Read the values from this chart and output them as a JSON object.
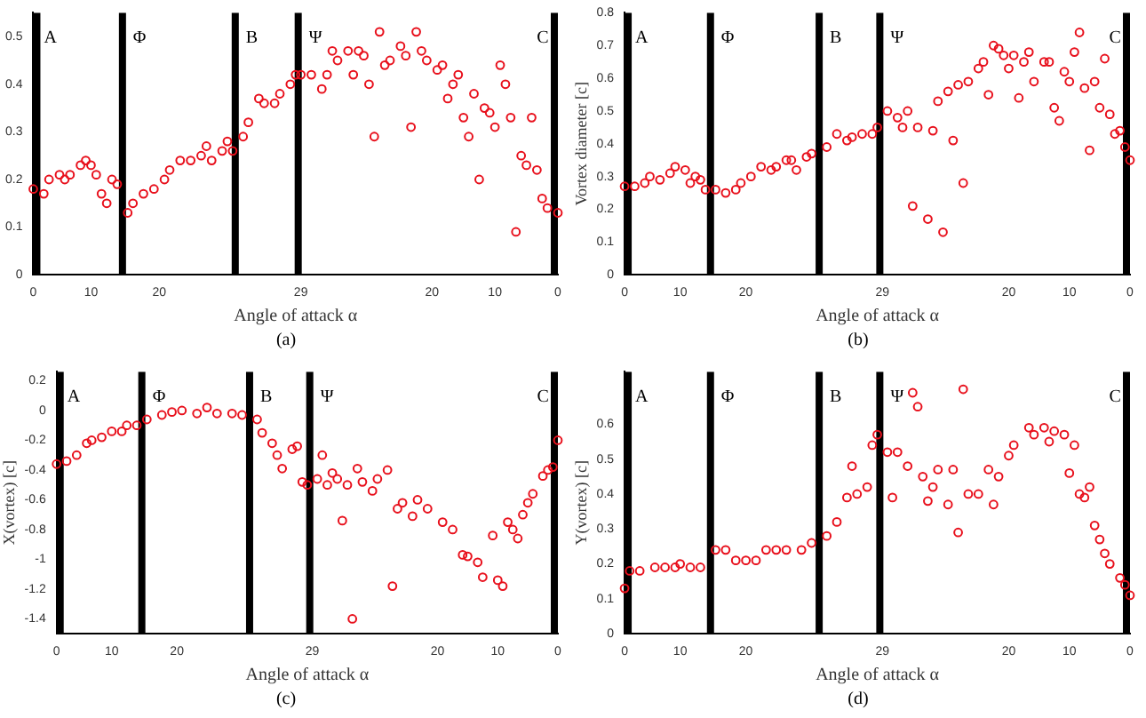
{
  "chart_data": [
    {
      "type": "scatter",
      "xlabel": "Angle of attack α",
      "marker": "circle",
      "grid": false,
      "legend": false,
      "categories": [
        "0",
        null,
        null,
        null,
        null,
        null,
        null,
        null,
        null,
        null,
        null,
        "10",
        null,
        null,
        null,
        null,
        null,
        null,
        null,
        null,
        null,
        null,
        null,
        null,
        "20",
        null,
        null,
        null,
        null,
        null,
        null,
        null,
        null,
        null,
        null,
        null,
        null,
        null,
        null,
        null,
        null,
        null,
        null,
        null,
        null,
        null,
        null,
        null,
        null,
        null,
        null,
        "29",
        null,
        null,
        null,
        null,
        null,
        null,
        null,
        null,
        null,
        null,
        null,
        null,
        null,
        null,
        null,
        null,
        null,
        null,
        null,
        null,
        null,
        null,
        null,
        null,
        "20",
        null,
        null,
        null,
        null,
        null,
        null,
        null,
        null,
        null,
        null,
        null,
        "10",
        null,
        null,
        null,
        null,
        null,
        null,
        null,
        null,
        null,
        null,
        null,
        "0"
      ],
      "ylim": [
        0,
        0.55
      ],
      "yticks": [
        0,
        0.1,
        0.2,
        0.3,
        0.4,
        0.5
      ],
      "annotations": [
        "A",
        "Φ",
        "B",
        "Ψ",
        "C",
        "(a)"
      ],
      "series": [
        {
          "color": "#e8101c",
          "values": [
            0.18,
            null,
            0.17,
            0.2,
            null,
            0.21,
            0.2,
            0.21,
            null,
            0.23,
            0.24,
            0.23,
            0.21,
            0.17,
            0.15,
            0.2,
            0.19,
            null,
            0.13,
            0.15,
            null,
            0.17,
            null,
            0.18,
            null,
            0.2,
            0.22,
            null,
            0.24,
            null,
            0.24,
            null,
            0.25,
            0.27,
            0.24,
            null,
            0.26,
            0.28,
            0.26,
            null,
            0.29,
            0.32,
            null,
            0.37,
            0.36,
            null,
            0.36,
            0.38,
            null,
            0.4,
            0.42,
            0.42,
            null,
            0.42,
            null,
            0.39,
            0.42,
            0.47,
            0.45,
            null,
            0.47,
            0.42,
            0.47,
            0.46,
            0.4,
            0.29,
            0.51,
            0.44,
            0.45,
            null,
            0.48,
            0.46,
            0.31,
            0.51,
            0.47,
            0.45,
            null,
            0.43,
            0.44,
            0.37,
            0.4,
            0.42,
            0.33,
            0.29,
            0.38,
            0.2,
            0.35,
            0.34,
            0.31,
            0.44,
            0.4,
            0.33,
            0.09,
            0.25,
            0.23,
            0.33,
            0.22,
            0.16,
            0.14,
            null,
            0.13
          ]
        }
      ]
    },
    {
      "type": "scatter",
      "xlabel": "Angle of attack α",
      "ylabel": "Vortex diameter [c]",
      "marker": "circle",
      "grid": false,
      "legend": false,
      "categories": [
        "0",
        null,
        null,
        null,
        null,
        null,
        null,
        null,
        null,
        null,
        null,
        "10",
        null,
        null,
        null,
        null,
        null,
        null,
        null,
        null,
        null,
        null,
        null,
        null,
        "20",
        null,
        null,
        null,
        null,
        null,
        null,
        null,
        null,
        null,
        null,
        null,
        null,
        null,
        null,
        null,
        null,
        null,
        null,
        null,
        null,
        null,
        null,
        null,
        null,
        null,
        null,
        "29",
        null,
        null,
        null,
        null,
        null,
        null,
        null,
        null,
        null,
        null,
        null,
        null,
        null,
        null,
        null,
        null,
        null,
        null,
        null,
        null,
        null,
        null,
        null,
        null,
        "20",
        null,
        null,
        null,
        null,
        null,
        null,
        null,
        null,
        null,
        null,
        null,
        "10",
        null,
        null,
        null,
        null,
        null,
        null,
        null,
        null,
        null,
        null,
        null,
        "0"
      ],
      "ylim": [
        0,
        0.8
      ],
      "yticks": [
        0,
        0.1,
        0.2,
        0.3,
        0.4,
        0.5,
        0.6,
        0.7,
        0.8
      ],
      "annotations": [
        "A",
        "Φ",
        "B",
        "Ψ",
        "C",
        "(b)"
      ],
      "series": [
        {
          "color": "#e8101c",
          "values": [
            0.27,
            null,
            0.27,
            null,
            0.28,
            0.3,
            null,
            0.29,
            null,
            0.31,
            0.33,
            null,
            0.32,
            0.28,
            0.3,
            0.29,
            0.26,
            null,
            0.26,
            null,
            0.25,
            null,
            0.26,
            0.28,
            null,
            0.3,
            null,
            0.33,
            null,
            0.32,
            0.33,
            null,
            0.35,
            0.35,
            0.32,
            null,
            0.36,
            0.37,
            null,
            null,
            0.39,
            null,
            0.43,
            null,
            0.41,
            0.42,
            null,
            0.43,
            null,
            0.43,
            0.45,
            null,
            0.5,
            null,
            0.48,
            0.45,
            0.5,
            0.21,
            0.45,
            null,
            0.17,
            0.44,
            0.53,
            0.13,
            0.56,
            0.41,
            0.58,
            0.28,
            0.59,
            null,
            0.63,
            0.65,
            0.55,
            0.7,
            0.69,
            0.67,
            0.63,
            0.67,
            0.54,
            0.65,
            0.68,
            0.59,
            null,
            0.65,
            0.65,
            0.51,
            0.47,
            0.62,
            0.59,
            0.68,
            0.74,
            0.57,
            0.38,
            0.59,
            0.51,
            0.66,
            0.49,
            0.43,
            0.44,
            0.39,
            0.35
          ]
        }
      ]
    },
    {
      "type": "scatter",
      "xlabel": "Angle of attack α",
      "ylabel": "X(vortex) [c]",
      "marker": "circle",
      "grid": false,
      "legend": false,
      "categories": [
        "0",
        null,
        null,
        null,
        null,
        null,
        null,
        null,
        null,
        null,
        null,
        "10",
        null,
        null,
        null,
        null,
        null,
        null,
        null,
        null,
        null,
        null,
        null,
        null,
        "20",
        null,
        null,
        null,
        null,
        null,
        null,
        null,
        null,
        null,
        null,
        null,
        null,
        null,
        null,
        null,
        null,
        null,
        null,
        null,
        null,
        null,
        null,
        null,
        null,
        null,
        null,
        "29",
        null,
        null,
        null,
        null,
        null,
        null,
        null,
        null,
        null,
        null,
        null,
        null,
        null,
        null,
        null,
        null,
        null,
        null,
        null,
        null,
        null,
        null,
        null,
        null,
        "20",
        null,
        null,
        null,
        null,
        null,
        null,
        null,
        null,
        null,
        null,
        null,
        "10",
        null,
        null,
        null,
        null,
        null,
        null,
        null,
        null,
        null,
        null,
        null,
        "0"
      ],
      "ylim": [
        -1.5,
        0.26
      ],
      "yticks": [
        -1.4,
        -1.2,
        -1,
        -0.8,
        -0.6,
        -0.4,
        -0.2,
        0,
        0.2
      ],
      "annotations": [
        "A",
        "Φ",
        "B",
        "Ψ",
        "C",
        "(c)"
      ],
      "series": [
        {
          "color": "#e8101c",
          "values": [
            -0.36,
            null,
            -0.34,
            null,
            -0.3,
            null,
            -0.22,
            -0.2,
            null,
            -0.18,
            null,
            -0.14,
            null,
            -0.14,
            -0.1,
            null,
            -0.1,
            null,
            -0.06,
            null,
            null,
            -0.03,
            null,
            -0.01,
            null,
            0,
            null,
            null,
            -0.02,
            null,
            0.02,
            null,
            -0.02,
            null,
            null,
            -0.02,
            null,
            -0.03,
            null,
            null,
            -0.06,
            -0.15,
            null,
            -0.22,
            -0.3,
            -0.39,
            null,
            -0.26,
            -0.24,
            -0.48,
            -0.5,
            null,
            -0.46,
            -0.3,
            -0.5,
            -0.42,
            -0.46,
            -0.74,
            -0.5,
            -1.4,
            -0.39,
            -0.48,
            null,
            -0.54,
            -0.46,
            null,
            -0.4,
            -1.18,
            -0.66,
            -0.62,
            null,
            -0.71,
            -0.6,
            null,
            -0.66,
            null,
            null,
            -0.75,
            null,
            -0.8,
            null,
            -0.97,
            -0.98,
            null,
            -1.02,
            -1.12,
            null,
            -0.84,
            -1.14,
            -1.18,
            -0.75,
            -0.8,
            -0.86,
            -0.7,
            -0.62,
            -0.56,
            null,
            -0.44,
            -0.4,
            -0.38,
            -0.2
          ]
        }
      ]
    },
    {
      "type": "scatter",
      "xlabel": "Angle of attack α",
      "ylabel": "Y(vortex) [c]",
      "marker": "circle",
      "grid": false,
      "legend": false,
      "categories": [
        "0",
        null,
        null,
        null,
        null,
        null,
        null,
        null,
        null,
        null,
        null,
        "10",
        null,
        null,
        null,
        null,
        null,
        null,
        null,
        null,
        null,
        null,
        null,
        null,
        "20",
        null,
        null,
        null,
        null,
        null,
        null,
        null,
        null,
        null,
        null,
        null,
        null,
        null,
        null,
        null,
        null,
        null,
        null,
        null,
        null,
        null,
        null,
        null,
        null,
        null,
        null,
        "29",
        null,
        null,
        null,
        null,
        null,
        null,
        null,
        null,
        null,
        null,
        null,
        null,
        null,
        null,
        null,
        null,
        null,
        null,
        null,
        null,
        null,
        null,
        null,
        null,
        "20",
        null,
        null,
        null,
        null,
        null,
        null,
        null,
        null,
        null,
        null,
        null,
        "10",
        null,
        null,
        null,
        null,
        null,
        null,
        null,
        null,
        null,
        null,
        null,
        "0"
      ],
      "ylim": [
        0,
        0.75
      ],
      "yticks": [
        0,
        0.1,
        0.2,
        0.3,
        0.4,
        0.5,
        0.6
      ],
      "annotations": [
        "A",
        "Φ",
        "B",
        "Ψ",
        "C",
        "(d)"
      ],
      "series": [
        {
          "color": "#e8101c",
          "values": [
            0.13,
            0.18,
            null,
            0.18,
            null,
            null,
            0.19,
            null,
            0.19,
            null,
            0.19,
            0.2,
            null,
            0.19,
            null,
            0.19,
            null,
            null,
            0.24,
            null,
            0.24,
            null,
            0.21,
            null,
            0.21,
            null,
            0.21,
            null,
            0.24,
            null,
            0.24,
            null,
            0.24,
            null,
            null,
            0.24,
            null,
            0.26,
            null,
            null,
            0.28,
            null,
            0.32,
            null,
            0.39,
            0.48,
            0.4,
            null,
            0.42,
            0.54,
            0.57,
            null,
            0.52,
            0.39,
            0.52,
            null,
            0.48,
            0.69,
            0.65,
            0.45,
            0.38,
            0.42,
            0.47,
            null,
            0.37,
            0.47,
            0.29,
            0.7,
            0.4,
            null,
            0.4,
            null,
            0.47,
            0.37,
            0.45,
            null,
            0.51,
            0.54,
            null,
            null,
            0.59,
            0.57,
            null,
            0.59,
            0.55,
            0.58,
            null,
            0.57,
            0.46,
            0.54,
            0.4,
            0.39,
            0.42,
            0.31,
            0.27,
            0.23,
            0.2,
            null,
            0.16,
            0.14,
            0.11
          ]
        }
      ]
    }
  ]
}
